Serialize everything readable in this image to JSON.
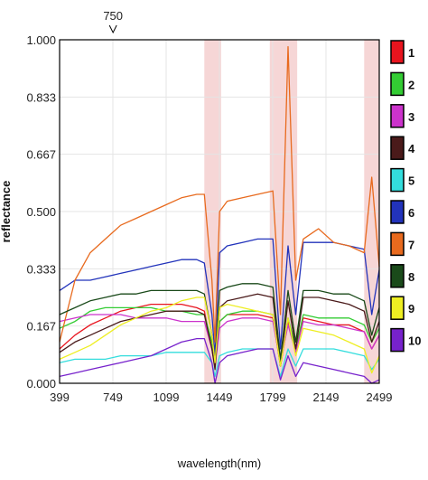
{
  "chart_data": {
    "type": "line",
    "xlabel": "wavelength(nm)",
    "ylabel": "reflectance",
    "xlim": [
      399,
      2499
    ],
    "ylim": [
      0.0,
      1.0
    ],
    "x_ticks": [
      "399",
      "749",
      "1099",
      "1449",
      "1799",
      "2149",
      "2499"
    ],
    "y_ticks": [
      "0.000",
      "0.167",
      "0.333",
      "0.500",
      "0.667",
      "0.833",
      "1.000"
    ],
    "marker_label": "750",
    "marker_x": 750,
    "shaded_bands": [
      [
        1350,
        1460
      ],
      [
        1780,
        1960
      ],
      [
        2400,
        2499
      ]
    ],
    "x": [
      399,
      500,
      600,
      700,
      800,
      900,
      1000,
      1100,
      1200,
      1300,
      1350,
      1400,
      1420,
      1450,
      1500,
      1600,
      1700,
      1800,
      1850,
      1900,
      1950,
      2000,
      2100,
      2200,
      2300,
      2400,
      2450,
      2499
    ],
    "series": [
      {
        "name": "1",
        "color": "#e8141e",
        "values": [
          0.1,
          0.14,
          0.17,
          0.19,
          0.21,
          0.22,
          0.23,
          0.23,
          0.23,
          0.22,
          0.21,
          0.1,
          0.05,
          0.18,
          0.2,
          0.2,
          0.2,
          0.19,
          0.05,
          0.18,
          0.1,
          0.19,
          0.18,
          0.17,
          0.17,
          0.15,
          0.1,
          0.14
        ]
      },
      {
        "name": "2",
        "color": "#33cc33",
        "values": [
          0.16,
          0.18,
          0.21,
          0.22,
          0.22,
          0.22,
          0.22,
          0.21,
          0.21,
          0.2,
          0.2,
          0.12,
          0.06,
          0.18,
          0.2,
          0.21,
          0.21,
          0.2,
          0.05,
          0.19,
          0.1,
          0.2,
          0.19,
          0.19,
          0.19,
          0.17,
          0.12,
          0.16
        ]
      },
      {
        "name": "3",
        "color": "#cc33cc",
        "values": [
          0.18,
          0.19,
          0.2,
          0.2,
          0.2,
          0.19,
          0.19,
          0.19,
          0.18,
          0.18,
          0.18,
          0.1,
          0.05,
          0.16,
          0.18,
          0.19,
          0.19,
          0.18,
          0.06,
          0.17,
          0.09,
          0.18,
          0.17,
          0.17,
          0.16,
          0.15,
          0.1,
          0.14
        ]
      },
      {
        "name": "4",
        "color": "#4a1a1a",
        "values": [
          0.09,
          0.12,
          0.14,
          0.16,
          0.18,
          0.19,
          0.2,
          0.21,
          0.21,
          0.21,
          0.2,
          0.1,
          0.04,
          0.22,
          0.24,
          0.25,
          0.26,
          0.25,
          0.05,
          0.24,
          0.1,
          0.25,
          0.25,
          0.24,
          0.23,
          0.21,
          0.12,
          0.18
        ]
      },
      {
        "name": "5",
        "color": "#33dddd",
        "values": [
          0.06,
          0.07,
          0.07,
          0.07,
          0.08,
          0.08,
          0.08,
          0.09,
          0.09,
          0.09,
          0.09,
          0.06,
          0.02,
          0.08,
          0.09,
          0.1,
          0.1,
          0.1,
          0.02,
          0.1,
          0.05,
          0.1,
          0.1,
          0.1,
          0.09,
          0.08,
          0.04,
          0.07
        ]
      },
      {
        "name": "6",
        "color": "#2233bb",
        "values": [
          0.27,
          0.3,
          0.3,
          0.31,
          0.32,
          0.33,
          0.34,
          0.35,
          0.36,
          0.36,
          0.35,
          0.2,
          0.08,
          0.38,
          0.4,
          0.41,
          0.42,
          0.42,
          0.1,
          0.4,
          0.2,
          0.41,
          0.41,
          0.41,
          0.4,
          0.39,
          0.2,
          0.33
        ]
      },
      {
        "name": "7",
        "color": "#e86a1e",
        "values": [
          0.12,
          0.3,
          0.38,
          0.42,
          0.46,
          0.48,
          0.5,
          0.52,
          0.54,
          0.55,
          0.55,
          0.3,
          0.12,
          0.5,
          0.53,
          0.54,
          0.55,
          0.56,
          0.2,
          0.98,
          0.3,
          0.42,
          0.45,
          0.41,
          0.4,
          0.38,
          0.6,
          0.34
        ]
      },
      {
        "name": "8",
        "color": "#1a4a1a",
        "values": [
          0.2,
          0.22,
          0.24,
          0.25,
          0.26,
          0.26,
          0.27,
          0.27,
          0.27,
          0.27,
          0.26,
          0.14,
          0.06,
          0.27,
          0.28,
          0.29,
          0.29,
          0.28,
          0.07,
          0.27,
          0.12,
          0.27,
          0.27,
          0.26,
          0.26,
          0.24,
          0.14,
          0.22
        ]
      },
      {
        "name": "9",
        "color": "#eeee22",
        "values": [
          0.07,
          0.09,
          0.11,
          0.14,
          0.17,
          0.19,
          0.21,
          0.22,
          0.24,
          0.25,
          0.25,
          0.14,
          0.06,
          0.22,
          0.23,
          0.22,
          0.21,
          0.2,
          0.05,
          0.19,
          0.08,
          0.16,
          0.15,
          0.14,
          0.12,
          0.1,
          0.03,
          0.08
        ]
      },
      {
        "name": "10",
        "color": "#7722cc",
        "values": [
          0.02,
          0.03,
          0.04,
          0.05,
          0.06,
          0.07,
          0.08,
          0.1,
          0.12,
          0.13,
          0.13,
          0.06,
          0.0,
          0.06,
          0.08,
          0.09,
          0.1,
          0.1,
          0.01,
          0.08,
          0.02,
          0.06,
          0.05,
          0.04,
          0.03,
          0.02,
          0.0,
          0.01
        ]
      }
    ]
  }
}
